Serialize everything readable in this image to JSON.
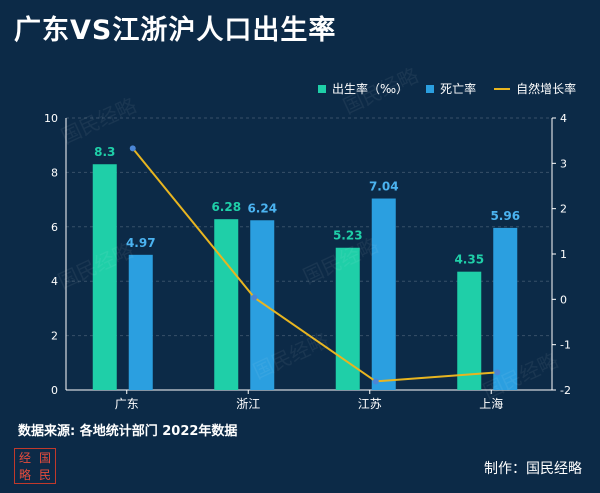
{
  "title": "广东VS江浙沪人口出生率",
  "legend": {
    "birth": "出生率（‰）",
    "death": "死亡率",
    "growth": "自然增长率"
  },
  "source": "数据来源: 各地统计部门 2022年数据",
  "credit": "制作：国民经略",
  "logo": [
    "经",
    "国",
    "略",
    "民"
  ],
  "watermark": "国民经略",
  "colors": {
    "background": "#0c2a47",
    "birth": "#1fcfa8",
    "death": "#2b9fe0",
    "growth": "#e8b520",
    "birth_label": "#1fcfa8",
    "death_label": "#4bb3f0"
  },
  "chart_data": {
    "type": "bar",
    "categories": [
      "广东",
      "浙江",
      "江苏",
      "上海"
    ],
    "series": [
      {
        "name": "出生率（‰）",
        "type": "bar",
        "axis": "left",
        "values": [
          8.3,
          6.28,
          5.23,
          4.35
        ],
        "labels": [
          "8.3",
          "6.28",
          "5.23",
          "4.35"
        ]
      },
      {
        "name": "死亡率",
        "type": "bar",
        "axis": "left",
        "values": [
          4.97,
          6.24,
          7.04,
          5.96
        ],
        "labels": [
          "4.97",
          "6.24",
          "7.04",
          "5.96"
        ]
      },
      {
        "name": "自然增长率",
        "type": "line",
        "axis": "right",
        "values": [
          3.33,
          0.04,
          -1.81,
          -1.61
        ]
      }
    ],
    "y_left": {
      "min": 0,
      "max": 10,
      "ticks": [
        "0",
        "2",
        "4",
        "6",
        "8",
        "10"
      ]
    },
    "y_right": {
      "min": -2,
      "max": 4,
      "ticks": [
        "-2",
        "-1",
        "0",
        "1",
        "2",
        "3",
        "4"
      ]
    },
    "grid": true,
    "legend_position": "top-right"
  }
}
